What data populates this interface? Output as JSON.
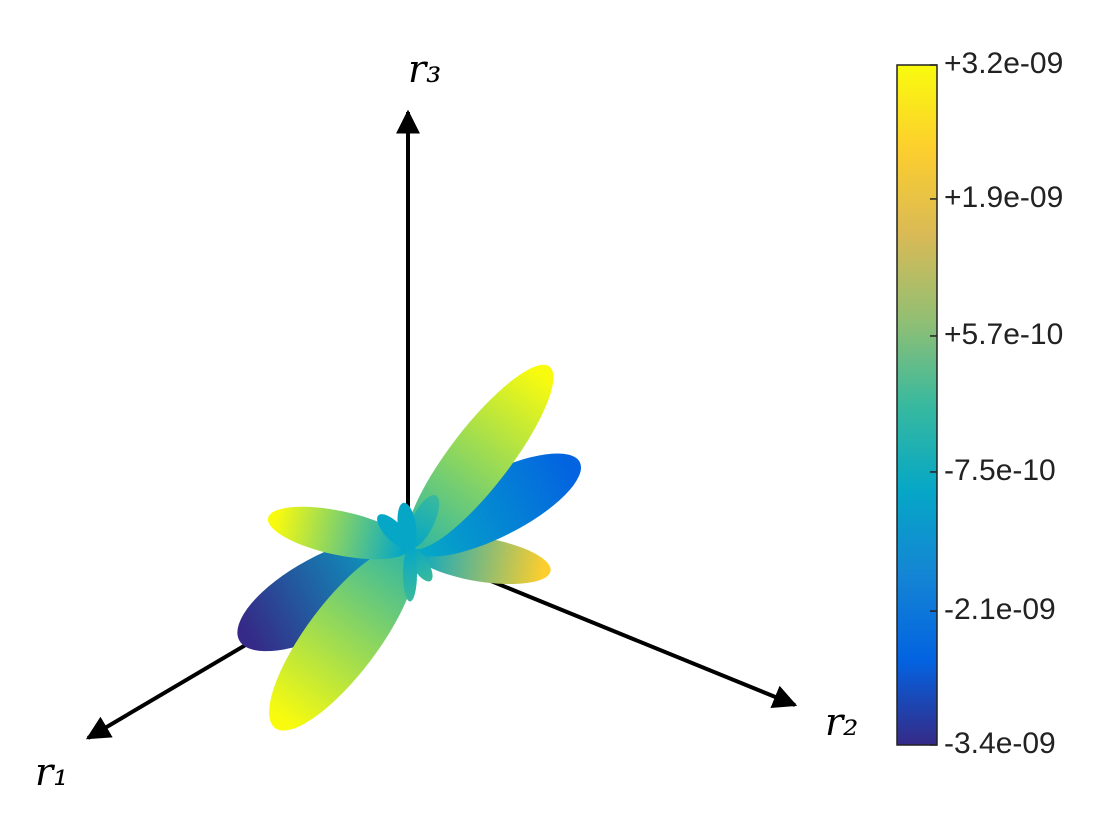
{
  "chart_data": {
    "type": "surface3d",
    "x_label": "r₁",
    "y_label": "r₂",
    "z_label": "r₃",
    "colormap": [
      "#352a87",
      "#0363e1",
      "#1485d4",
      "#06a7c6",
      "#38b99e",
      "#92bf73",
      "#d9ba56",
      "#fcce2e",
      "#f9fb0e"
    ],
    "colorbar": {
      "clim": [
        -3.4e-09,
        3.2e-09
      ],
      "ticks": [
        {
          "value": 3.2e-09,
          "label": "+3.2e-09"
        },
        {
          "value": 1.9e-09,
          "label": "+1.9e-09"
        },
        {
          "value": 5.7e-10,
          "label": "+5.7e-10"
        },
        {
          "value": -7.5e-10,
          "label": "-7.5e-10"
        },
        {
          "value": -2.1e-09,
          "label": "-2.1e-09"
        },
        {
          "value": -3.4e-09,
          "label": "-3.4e-09"
        }
      ]
    }
  }
}
